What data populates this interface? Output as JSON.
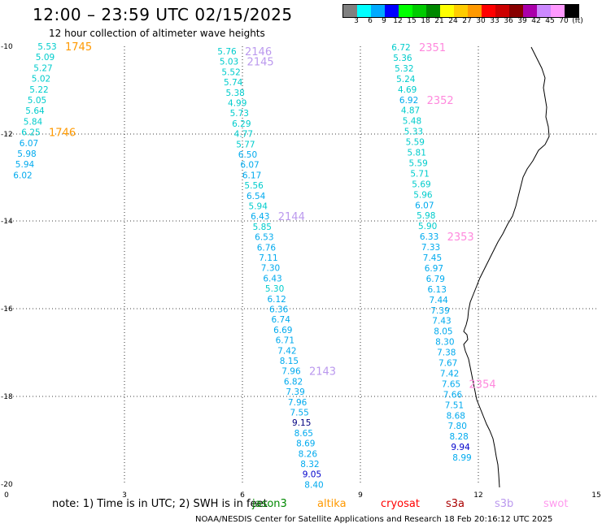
{
  "title": "12:00 – 23:59 UTC 02/15/2025",
  "subtitle": "12 hour collection of altimeter wave heights",
  "colorbar": {
    "colors": [
      "#808080",
      "#00ffff",
      "#00aaff",
      "#0000ff",
      "#00ff00",
      "#00cc00",
      "#008800",
      "#ffff00",
      "#ffcc00",
      "#ff9900",
      "#ff0000",
      "#cc0000",
      "#880000",
      "#aa00aa",
      "#cc88ff",
      "#ff99ff",
      "#000000"
    ],
    "labels": [
      "3",
      "6",
      "9",
      "12",
      "15",
      "18",
      "21",
      "24",
      "27",
      "30",
      "33",
      "36",
      "39",
      "42",
      "45",
      "70",
      "(ft)"
    ]
  },
  "axes": {
    "x_ticks": [
      "0",
      "3",
      "6",
      "9",
      "12",
      "15"
    ],
    "y_ticks": [
      "-10",
      "-12",
      "-14",
      "-16",
      "-18",
      "-20"
    ]
  },
  "tracks": [
    {
      "name": "track-1",
      "values": [
        "5.53",
        "5.09",
        "5.27",
        "5.02",
        "5.22",
        "5.05",
        "5.64",
        "5.84",
        "6.25",
        "6.07",
        "5.98",
        "5.94",
        "6.02"
      ],
      "colors": [
        "#00cccc",
        "#00cccc",
        "#00cccc",
        "#00cccc",
        "#00cccc",
        "#00cccc",
        "#00cccc",
        "#00cccc",
        "#00cccc",
        "#00aaee",
        "#00aaee",
        "#00aaee",
        "#00aaee"
      ],
      "time_labels": [
        {
          "text": "1745",
          "color": "#ff9900",
          "at": 0
        },
        {
          "text": "1746",
          "color": "#ff9900",
          "at": 8
        }
      ]
    },
    {
      "name": "track-2",
      "values": [
        "5.76",
        "5.03",
        "5.52",
        "5.74",
        "5.38",
        "4.99",
        "5.73",
        "6.29",
        "4.77",
        "5.77",
        "6.50",
        "6.07",
        "6.17",
        "5.56",
        "6.54",
        "5.94",
        "6.43",
        "5.85",
        "6.53",
        "6.76",
        "7.11",
        "7.30",
        "6.43",
        "5.30",
        "6.12",
        "6.36",
        "6.74",
        "6.69",
        "6.71",
        "7.42",
        "8.15",
        "7.96",
        "6.82",
        "7.39",
        "7.96",
        "7.55",
        "9.15",
        "8.65",
        "8.69",
        "8.26",
        "8.32",
        "9.05",
        "8.40"
      ],
      "colors": [
        "#00cccc",
        "#00cccc",
        "#00cccc",
        "#00cccc",
        "#00cccc",
        "#00cccc",
        "#00cccc",
        "#00cccc",
        "#00cccc",
        "#00cccc",
        "#00aaee",
        "#00aaee",
        "#00aaee",
        "#00cccc",
        "#00aaee",
        "#00cccc",
        "#00aaee",
        "#00cccc",
        "#00aaee",
        "#00aaee",
        "#00aaee",
        "#00aaee",
        "#00aaee",
        "#00cccc",
        "#00aaee",
        "#00aaee",
        "#00aaee",
        "#00aaee",
        "#00aaee",
        "#00aaee",
        "#00aaee",
        "#00aaee",
        "#00aaee",
        "#00aaee",
        "#00aaee",
        "#00aaee",
        "#000080",
        "#00aaee",
        "#00aaee",
        "#00aaee",
        "#00aaee",
        "#0000cc",
        "#00aaee"
      ],
      "time_labels": [
        {
          "text": "2146",
          "color": "#bb99ee",
          "at": 0
        },
        {
          "text": "2145",
          "color": "#bb99ee",
          "at": 1
        },
        {
          "text": "2144",
          "color": "#bb99ee",
          "at": 16
        },
        {
          "text": "2143",
          "color": "#bb99ee",
          "at": 31
        }
      ]
    },
    {
      "name": "track-3",
      "values": [
        "6.72",
        "5.36",
        "5.32",
        "5.24",
        "4.69",
        "6.92",
        "4.87",
        "5.48",
        "5.33",
        "5.59",
        "5.81",
        "5.59",
        "5.71",
        "5.69",
        "5.96",
        "6.07",
        "5.98",
        "5.90",
        "6.33",
        "7.33",
        "7.45",
        "6.97",
        "6.79",
        "6.13",
        "7.44",
        "7.39",
        "7.43",
        "8.05",
        "8.30",
        "7.38",
        "7.67",
        "7.42",
        "7.65",
        "7.66",
        "7.51",
        "8.68",
        "7.80",
        "8.28",
        "9.94",
        "8.99"
      ],
      "colors": [
        "#00cccc",
        "#00cccc",
        "#00cccc",
        "#00cccc",
        "#00cccc",
        "#00aaee",
        "#00cccc",
        "#00cccc",
        "#00cccc",
        "#00cccc",
        "#00cccc",
        "#00cccc",
        "#00cccc",
        "#00cccc",
        "#00cccc",
        "#00aaee",
        "#00cccc",
        "#00cccc",
        "#00aaee",
        "#00aaee",
        "#00aaee",
        "#00aaee",
        "#00aaee",
        "#00aaee",
        "#00aaee",
        "#00aaee",
        "#00aaee",
        "#00aaee",
        "#00aaee",
        "#00aaee",
        "#00aaee",
        "#00aaee",
        "#00aaee",
        "#00aaee",
        "#00aaee",
        "#00aaee",
        "#00aaee",
        "#00aaee",
        "#0000cc",
        "#00aaee"
      ],
      "time_labels": [
        {
          "text": "2351",
          "color": "#ff88dd",
          "at": 0
        },
        {
          "text": "2352",
          "color": "#ff88dd",
          "at": 5
        },
        {
          "text": "2353",
          "color": "#ff88dd",
          "at": 18
        },
        {
          "text": "2354",
          "color": "#ff88dd",
          "at": 32
        }
      ]
    }
  ],
  "note": "note:  1) Time is in UTC;  2) SWH is in feet",
  "legend": [
    {
      "label": "jason3",
      "color": "#008800"
    },
    {
      "label": "altika",
      "color": "#ff9900"
    },
    {
      "label": "cryosat",
      "color": "#ff0000"
    },
    {
      "label": "s3a",
      "color": "#aa0000"
    },
    {
      "label": "s3b",
      "color": "#bb99ee"
    },
    {
      "label": "swot",
      "color": "#ff99ee"
    }
  ],
  "footer": "NOAA/NESDIS Center for Satellite Applications and Research    18 Feb 20:16:12 UTC 2025"
}
